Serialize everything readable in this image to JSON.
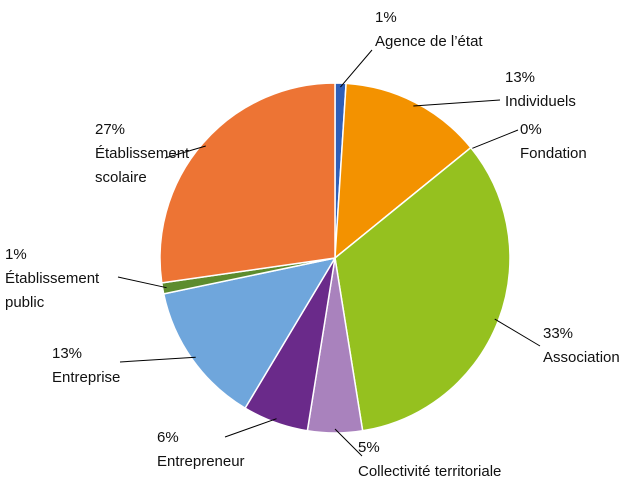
{
  "chart_data": {
    "type": "pie",
    "categories": [
      "Agence de l’état",
      "Individuels",
      "Fondation",
      "Association",
      "Collectivité territoriale",
      "Entrepreneur",
      "Entreprise",
      "Établissement public",
      "Établissement scolaire"
    ],
    "values": [
      1,
      13,
      0,
      33,
      5,
      6,
      13,
      1,
      27
    ],
    "value_labels": [
      "1%",
      "13%",
      "0%",
      "33%",
      "5%",
      "6%",
      "13%",
      "1%",
      "27%"
    ],
    "colors": [
      "#2f5fb8",
      "#f39200",
      "#4f81bd",
      "#95c11f",
      "#a982bd",
      "#6a2a8a",
      "#6fa6dc",
      "#5d8c2e",
      "#ed7434"
    ]
  }
}
